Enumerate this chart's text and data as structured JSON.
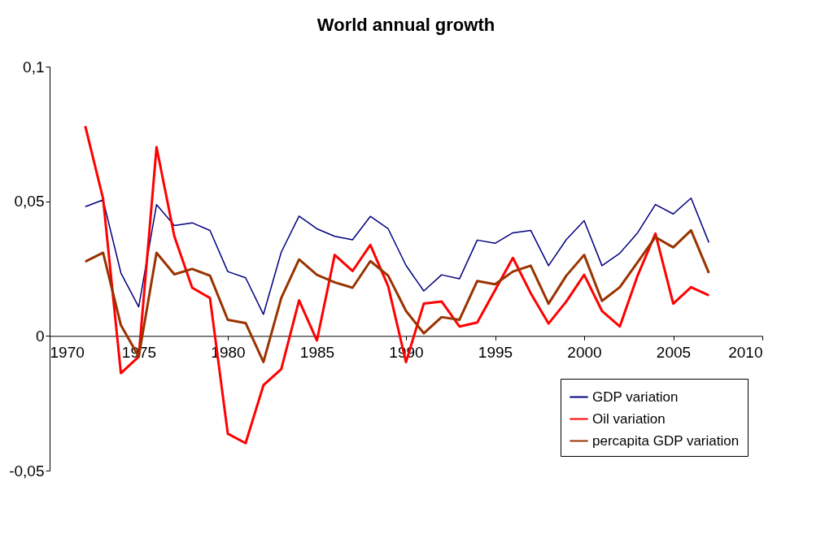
{
  "chart_data": {
    "type": "line",
    "title": "World annual growth",
    "x": [
      1972,
      1973,
      1974,
      1975,
      1976,
      1977,
      1978,
      1979,
      1980,
      1981,
      1982,
      1983,
      1984,
      1985,
      1986,
      1987,
      1988,
      1989,
      1990,
      1991,
      1992,
      1993,
      1994,
      1995,
      1996,
      1997,
      1998,
      1999,
      2000,
      2001,
      2002,
      2003,
      2004,
      2005,
      2006,
      2007
    ],
    "series": [
      {
        "name": "GDP variation",
        "color": "#000080",
        "values": [
          0.048,
          0.0505,
          0.0234,
          0.0108,
          0.0488,
          0.041,
          0.042,
          0.0392,
          0.0239,
          0.0216,
          0.008,
          0.0311,
          0.0445,
          0.0398,
          0.037,
          0.0357,
          0.0444,
          0.0398,
          0.0262,
          0.0167,
          0.0227,
          0.0212,
          0.0356,
          0.0344,
          0.0383,
          0.0392,
          0.0261,
          0.0358,
          0.0428,
          0.0261,
          0.0307,
          0.0383,
          0.0488,
          0.0453,
          0.0512,
          0.0347
        ]
      },
      {
        "name": "Oil variation",
        "color": "#ff0000",
        "values": [
          0.0779,
          0.051,
          -0.0138,
          -0.0077,
          0.0701,
          0.037,
          0.0179,
          0.0141,
          -0.0363,
          -0.0398,
          -0.0183,
          -0.0123,
          0.0132,
          -0.0017,
          0.0301,
          0.0241,
          0.0338,
          0.0185,
          -0.0097,
          0.012,
          0.0128,
          0.0035,
          0.005,
          0.017,
          0.029,
          0.0159,
          0.0046,
          0.0128,
          0.0227,
          0.0093,
          0.0035,
          0.0224,
          0.038,
          0.012,
          0.0181,
          0.0151
        ]
      },
      {
        "name": "percapita GDP variation",
        "color": "#993300",
        "values": [
          0.0276,
          0.0309,
          0.004,
          -0.0077,
          0.0309,
          0.0229,
          0.0249,
          0.0224,
          0.006,
          0.0048,
          -0.0097,
          0.0141,
          0.0284,
          0.0227,
          0.0199,
          0.0179,
          0.0278,
          0.0224,
          0.0093,
          0.001,
          0.007,
          0.006,
          0.0204,
          0.0192,
          0.0239,
          0.0261,
          0.012,
          0.0224,
          0.0301,
          0.013,
          0.0181,
          0.0274,
          0.0367,
          0.0329,
          0.0392,
          0.0234
        ]
      }
    ],
    "xlim": [
      1970,
      2010
    ],
    "xticks": [
      1970,
      1975,
      1980,
      1985,
      1990,
      1995,
      2000,
      2005,
      2010
    ],
    "ylim": [
      -0.05,
      0.1
    ],
    "yticks": [
      {
        "value": -0.05,
        "label": "-0,05"
      },
      {
        "value": 0,
        "label": "0"
      },
      {
        "value": 0.05,
        "label": "0,05"
      },
      {
        "value": 0.1,
        "label": "0,1"
      }
    ],
    "grid": false,
    "legend": "bottom right",
    "marker": "none",
    "line_style": "solid"
  }
}
